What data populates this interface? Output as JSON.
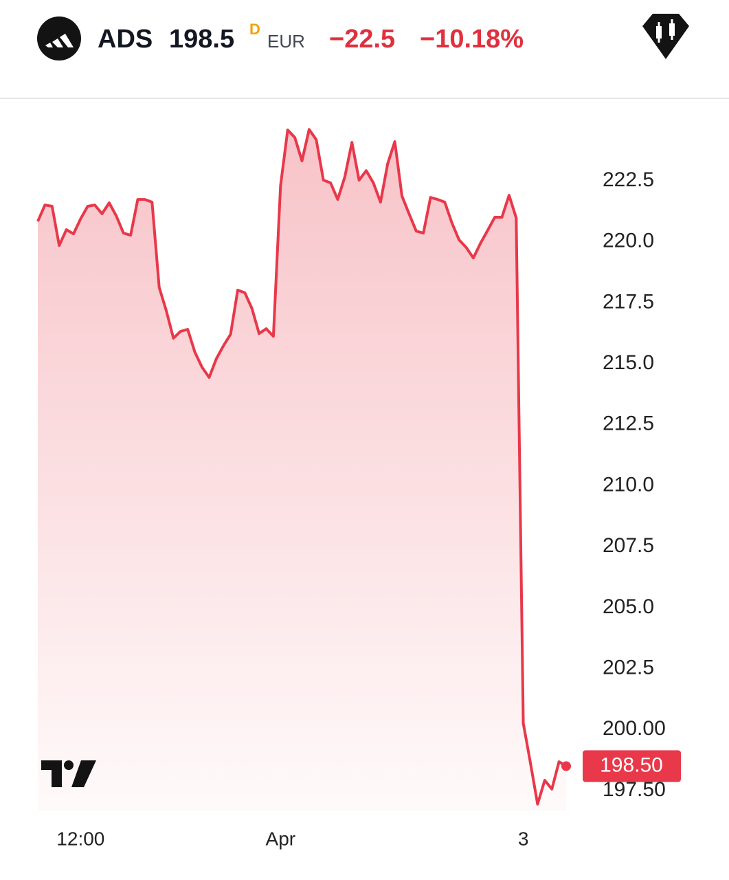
{
  "header": {
    "symbol": "ADS",
    "price": "198.5",
    "price_flag": "D",
    "currency": "EUR",
    "change": "−22.5",
    "change_pct": "−10.18%"
  },
  "chart_data": {
    "type": "line",
    "categories": [
      null,
      null,
      null,
      null,
      null,
      null,
      "12:00",
      null,
      null,
      null,
      null,
      null,
      null,
      null,
      null,
      null,
      null,
      null,
      null,
      null,
      null,
      null,
      null,
      null,
      null,
      null,
      null,
      null,
      null,
      null,
      null,
      null,
      null,
      null,
      "Apr",
      null,
      null,
      null,
      null,
      null,
      null,
      null,
      null,
      null,
      null,
      null,
      null,
      null,
      null,
      null,
      null,
      null,
      null,
      null,
      null,
      null,
      null,
      null,
      null,
      null,
      null,
      null,
      null,
      null,
      null,
      null,
      null,
      null,
      "3",
      null,
      null,
      null,
      null,
      null,
      null
    ],
    "series": [
      {
        "color": "#e8384a",
        "values": [
          220.84,
          221.51,
          221.46,
          219.85,
          220.5,
          220.33,
          220.95,
          221.46,
          221.51,
          221.15,
          221.6,
          221.06,
          220.36,
          220.27,
          221.74,
          221.74,
          221.63,
          218.13,
          217.17,
          216.05,
          216.33,
          216.41,
          215.48,
          214.86,
          214.44,
          215.2,
          215.74,
          216.21,
          218.02,
          217.91,
          217.26,
          216.24,
          216.44,
          216.13,
          222.3,
          224.59,
          224.28,
          223.32,
          224.61,
          224.19,
          222.53,
          222.42,
          221.74,
          222.67,
          224.08,
          222.53,
          222.92,
          222.42,
          221.63,
          223.2,
          224.11,
          221.88,
          221.15,
          220.44,
          220.36,
          221.82,
          221.74,
          221.63,
          220.78,
          220.08,
          219.77,
          219.34,
          219.94,
          220.47,
          221.01,
          221.01,
          221.91,
          220.98,
          200.26,
          198.63,
          196.94,
          197.92,
          197.56,
          198.68,
          198.5
        ]
      }
    ],
    "current": {
      "value": 198.5,
      "label": "198.50"
    },
    "ylim": [
      196.65,
      225.83
    ],
    "yticks": [
      {
        "value": 197.5,
        "label": "197.50"
      },
      {
        "value": 200,
        "label": "200.00"
      },
      202.5,
      {
        "value": 205,
        "label": "205.0"
      },
      207.5,
      {
        "value": 210,
        "label": "210.0"
      },
      212.5,
      {
        "value": 215,
        "label": "215.0"
      },
      217.5,
      {
        "value": 220,
        "label": "220.0"
      },
      222.5
    ]
  }
}
